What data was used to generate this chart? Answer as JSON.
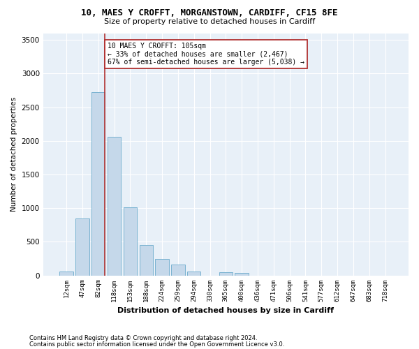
{
  "title": "10, MAES Y CROFFT, MORGANSTOWN, CARDIFF, CF15 8FE",
  "subtitle": "Size of property relative to detached houses in Cardiff",
  "xlabel": "Distribution of detached houses by size in Cardiff",
  "ylabel": "Number of detached properties",
  "bar_color": "#c5d8ea",
  "bar_edgecolor": "#6aaacb",
  "background_color": "#e8f0f8",
  "categories": [
    "12sqm",
    "47sqm",
    "82sqm",
    "118sqm",
    "153sqm",
    "188sqm",
    "224sqm",
    "259sqm",
    "294sqm",
    "330sqm",
    "365sqm",
    "400sqm",
    "436sqm",
    "471sqm",
    "506sqm",
    "541sqm",
    "577sqm",
    "612sqm",
    "647sqm",
    "683sqm",
    "718sqm"
  ],
  "values": [
    60,
    850,
    2720,
    2060,
    1010,
    450,
    240,
    160,
    60,
    0,
    45,
    35,
    0,
    0,
    0,
    0,
    0,
    0,
    0,
    0,
    0
  ],
  "property_line_color": "#b03030",
  "annotation_text": "10 MAES Y CROFFT: 105sqm\n← 33% of detached houses are smaller (2,467)\n67% of semi-detached houses are larger (5,038) →",
  "annotation_box_color": "white",
  "annotation_box_edgecolor": "#b03030",
  "ylim": [
    0,
    3600
  ],
  "yticks": [
    0,
    500,
    1000,
    1500,
    2000,
    2500,
    3000,
    3500
  ],
  "footnote1": "Contains HM Land Registry data © Crown copyright and database right 2024.",
  "footnote2": "Contains public sector information licensed under the Open Government Licence v3.0."
}
